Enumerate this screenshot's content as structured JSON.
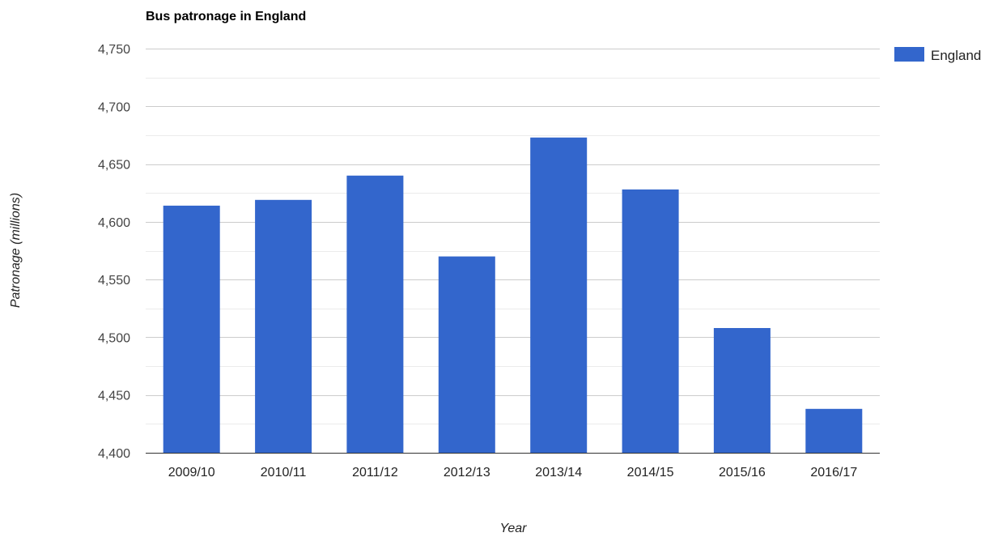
{
  "chart_data": {
    "type": "bar",
    "title": "Bus patronage in England",
    "xlabel": "Year",
    "ylabel": "Patronage (millions)",
    "categories": [
      "2009/10",
      "2010/11",
      "2011/12",
      "2012/13",
      "2013/14",
      "2014/15",
      "2015/16",
      "2016/17"
    ],
    "series": [
      {
        "name": "England",
        "values": [
          4614,
          4619,
          4640,
          4570,
          4673,
          4628,
          4508,
          4438
        ],
        "color": "#3366cc"
      }
    ],
    "ylim": [
      4400,
      4750
    ],
    "yticks": [
      4400,
      4450,
      4500,
      4550,
      4600,
      4650,
      4700,
      4750
    ],
    "ytick_labels": [
      "4,400",
      "4,450",
      "4,500",
      "4,550",
      "4,600",
      "4,650",
      "4,700",
      "4,750"
    ],
    "grid": true,
    "legend_position": "top-right"
  }
}
